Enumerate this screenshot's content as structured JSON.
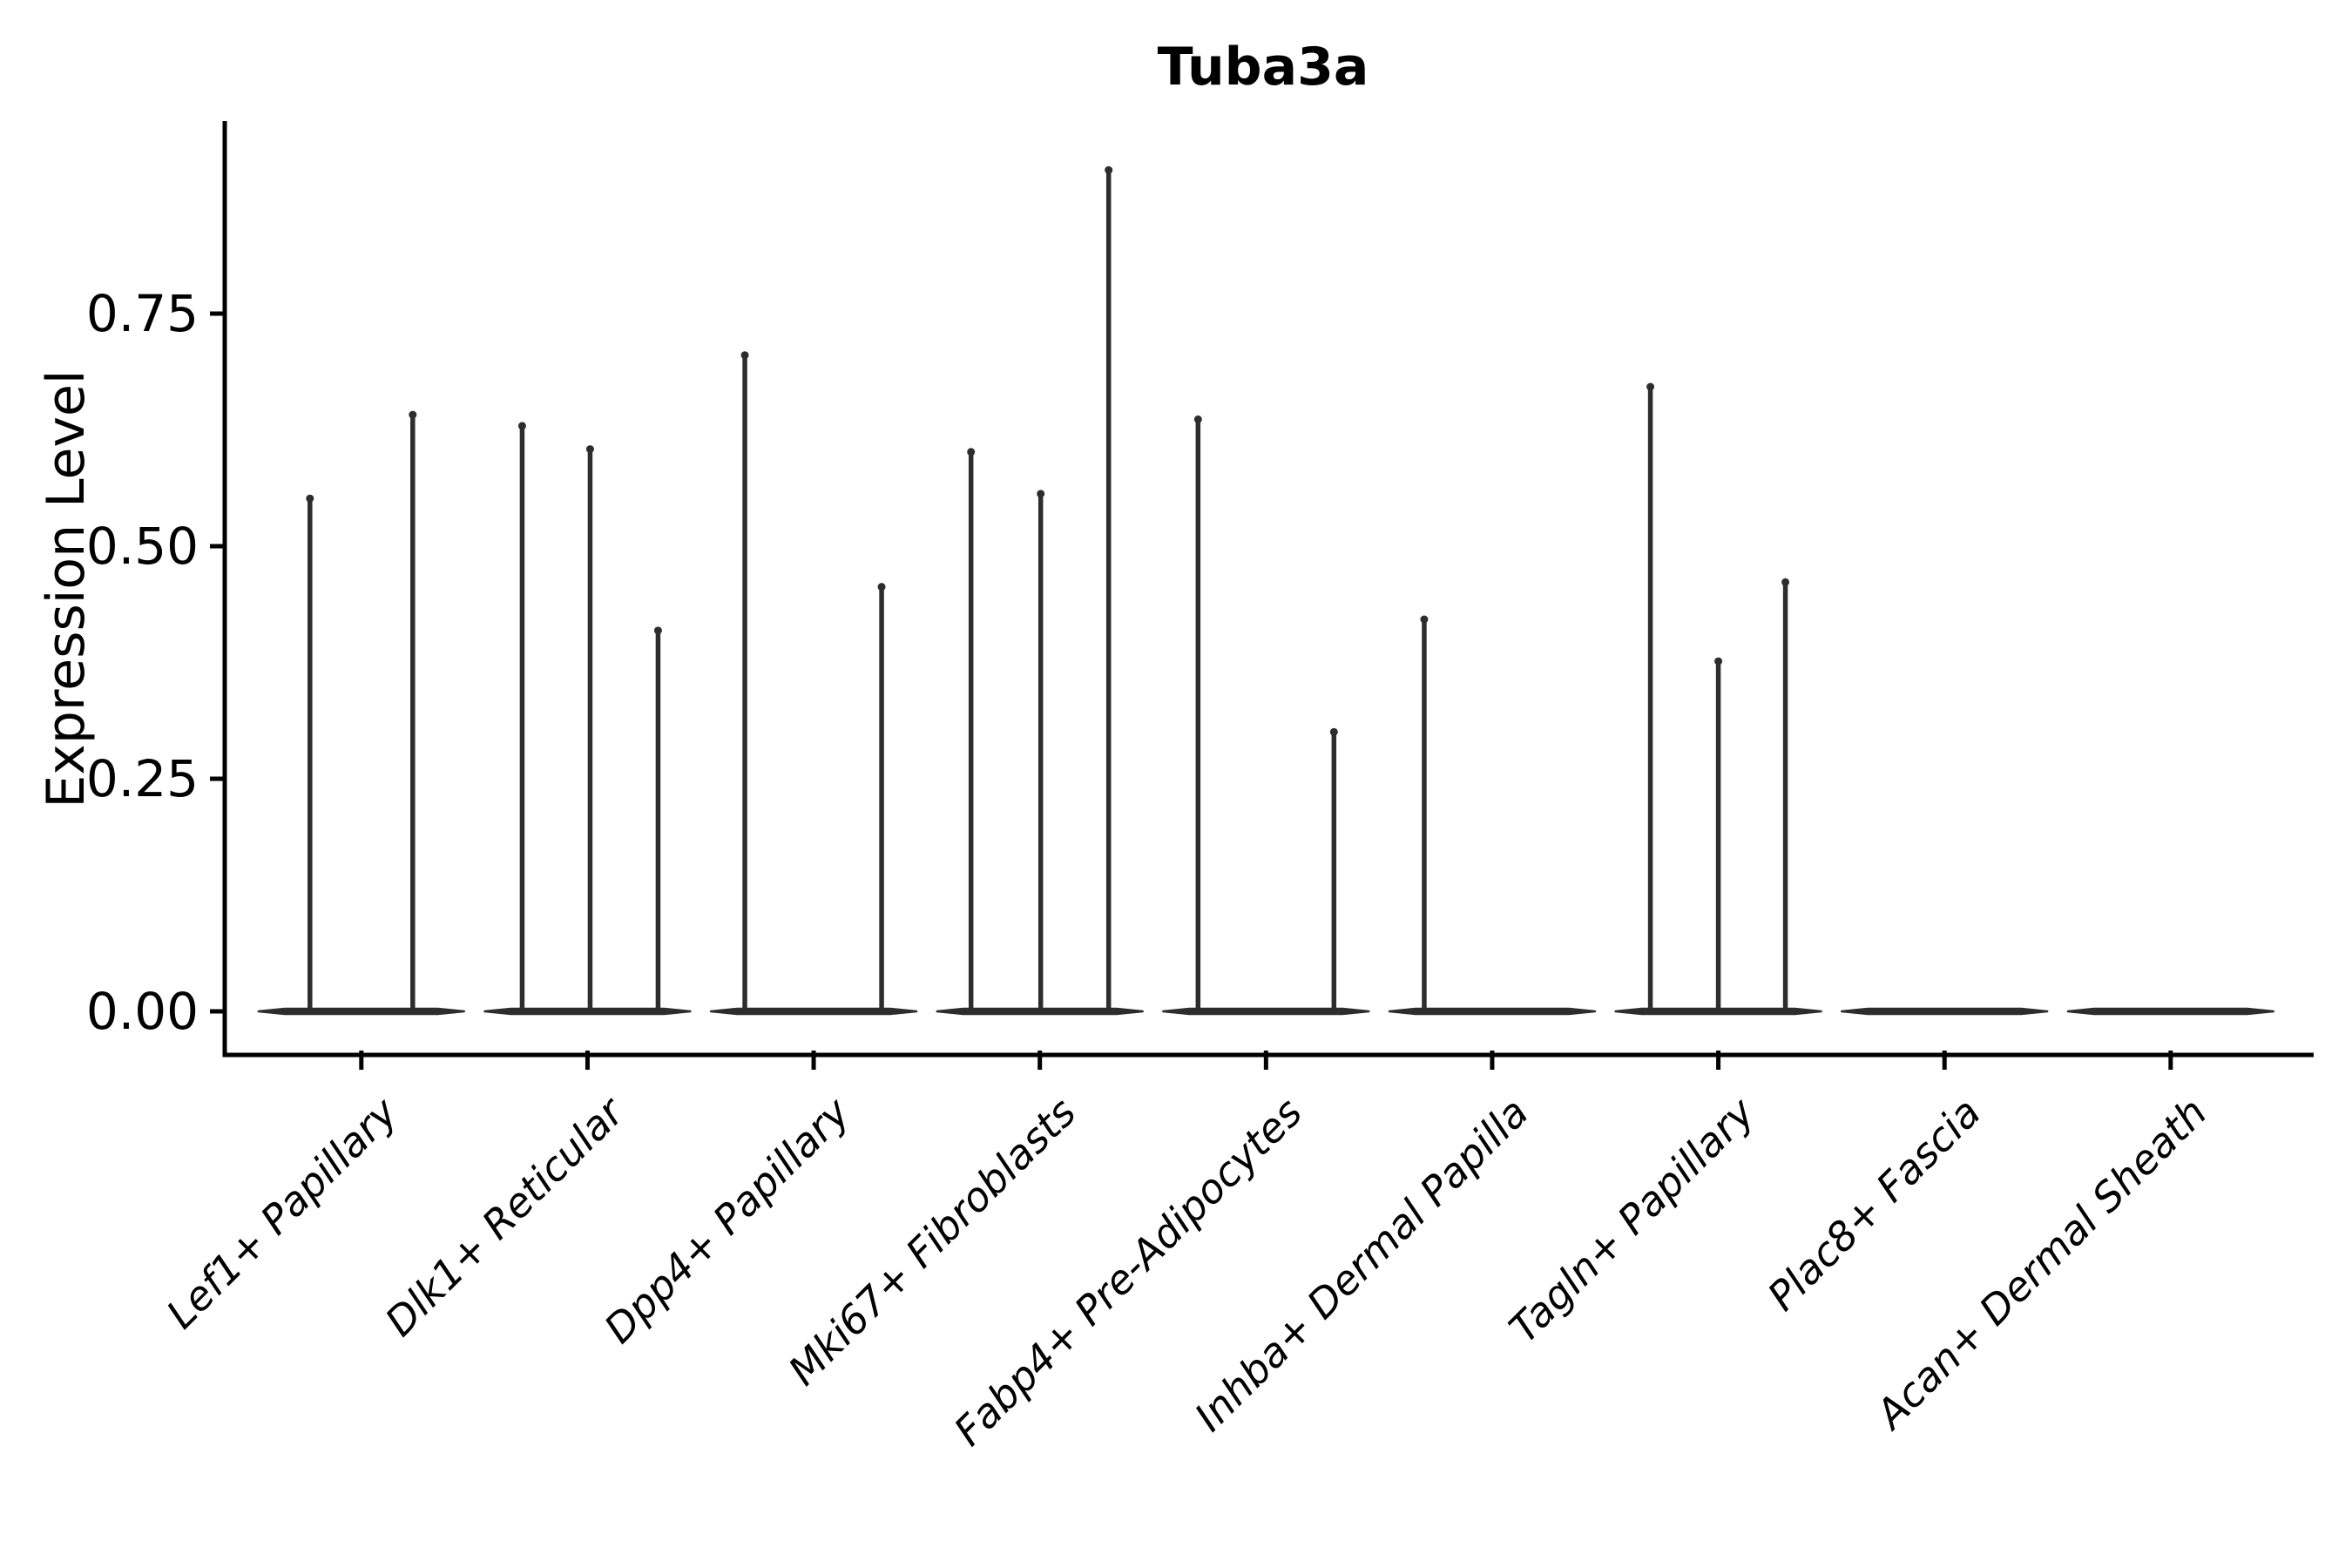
{
  "figure": {
    "title": "Tuba3a",
    "ylabel": "Expression Level",
    "background": "#ffffff"
  },
  "chart_data": {
    "type": "violin",
    "title": "Tuba3a",
    "xlabel": "",
    "ylabel": "Expression Level",
    "categories": [
      "Lef1+ Papillary",
      "Dlk1+ Reticular",
      "Dpp4+ Papillary",
      "Mki67+ Fibroblasts",
      "Fabp4+ Pre-Adipocytes",
      "Inhba+ Dermal Papilla",
      "Tagln+ Papillary",
      "Plac8+ Fascia",
      "Acan+ Dermal Sheath"
    ],
    "y_ticks": [
      {
        "value": 0.0,
        "label": "0.00"
      },
      {
        "value": 0.25,
        "label": "0.25"
      },
      {
        "value": 0.5,
        "label": "0.50"
      },
      {
        "value": 0.75,
        "label": "0.75"
      }
    ],
    "ylim": [
      0,
      0.955
    ],
    "grid": false,
    "legend": "none",
    "violin_color": "#2d2d2d",
    "axis_color": "#000000",
    "series": [
      {
        "category": "Lef1+ Papillary",
        "baseline_value": 0,
        "needles": [
          {
            "x_offset": -59,
            "value": 0.556
          },
          {
            "x_offset": 59,
            "value": 0.646
          }
        ]
      },
      {
        "category": "Dlk1+ Reticular",
        "baseline_value": 0,
        "needles": [
          {
            "x_offset": -75,
            "value": 0.634
          },
          {
            "x_offset": 3,
            "value": 0.609
          },
          {
            "x_offset": 81,
            "value": 0.414
          }
        ]
      },
      {
        "category": "Dpp4+ Papillary",
        "baseline_value": 0,
        "needles": [
          {
            "x_offset": -79,
            "value": 0.71
          },
          {
            "x_offset": 78,
            "value": 0.461
          }
        ]
      },
      {
        "category": "Mki67+ Fibroblasts",
        "baseline_value": 0,
        "needles": [
          {
            "x_offset": -79,
            "value": 0.606
          },
          {
            "x_offset": 1,
            "value": 0.561
          },
          {
            "x_offset": 79,
            "value": 0.909
          }
        ]
      },
      {
        "category": "Fabp4+ Pre-Adipocytes",
        "baseline_value": 0,
        "needles": [
          {
            "x_offset": -78,
            "value": 0.641
          },
          {
            "x_offset": 78,
            "value": 0.305
          }
        ]
      },
      {
        "category": "Inhba+ Dermal Papilla",
        "baseline_value": 0,
        "needles": [
          {
            "x_offset": -78,
            "value": 0.426
          }
        ]
      },
      {
        "category": "Tagln+ Papillary",
        "baseline_value": 0,
        "needles": [
          {
            "x_offset": -78,
            "value": 0.676
          },
          {
            "x_offset": 0,
            "value": 0.381
          },
          {
            "x_offset": 77,
            "value": 0.466
          }
        ]
      },
      {
        "category": "Plac8+ Fascia",
        "baseline_value": 0,
        "needles": []
      },
      {
        "category": "Acan+ Dermal Sheath",
        "baseline_value": 0,
        "needles": []
      }
    ]
  }
}
